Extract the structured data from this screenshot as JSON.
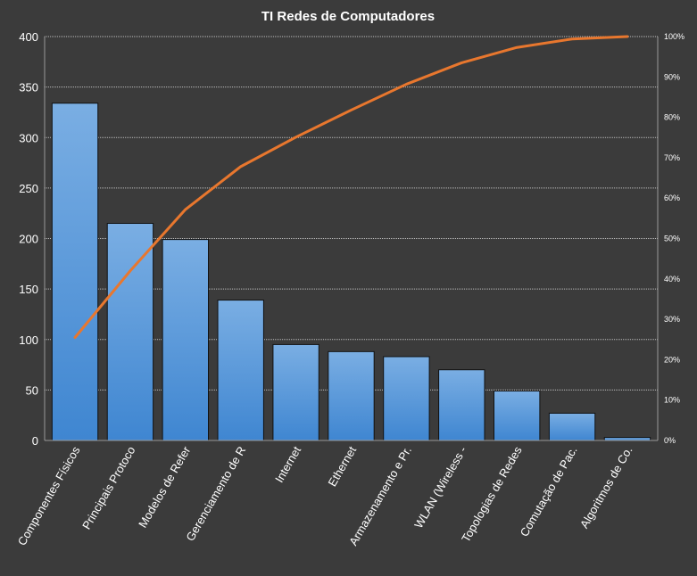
{
  "chart_data": {
    "type": "bar",
    "title": "TI Redes de Computadores",
    "categories": [
      "Componentes Físicos",
      "Principais Protoco",
      "Modelos de Refer",
      "Gerenciamento de R",
      "Internet",
      "Ethernet",
      "Armazenamento  e Pr.",
      "WLAN (Wireless -",
      "Topologias de Redes",
      "Comutação de Pac.",
      "Algoritmos de Co."
    ],
    "series": [
      {
        "values": [
          334,
          215,
          199,
          139,
          95,
          88,
          83,
          70,
          49,
          27,
          3
        ]
      },
      {
        "values": [
          25.5,
          42.0,
          57.2,
          67.8,
          75.1,
          81.8,
          88.2,
          93.5,
          97.3,
          99.4,
          100.0
        ]
      }
    ],
    "ylim": [
      0,
      400
    ],
    "yticks": [
      "0",
      "50",
      "100",
      "150",
      "200",
      "250",
      "300",
      "350",
      "400"
    ],
    "y2lim": [
      0,
      100
    ],
    "y2ticks": [
      "0%",
      "10%",
      "20%",
      "30%",
      "40%",
      "50%",
      "60%",
      "70%",
      "80%",
      "90%",
      "100%"
    ],
    "grid": true,
    "colors": {
      "background": "#3b3b3b",
      "bar_top": "#7aaee3",
      "bar_bottom": "#3f86d1",
      "bar_stroke": "#111111",
      "line": "#e8772e",
      "grid": "#bdbdbd",
      "text": "#ffffff"
    }
  }
}
